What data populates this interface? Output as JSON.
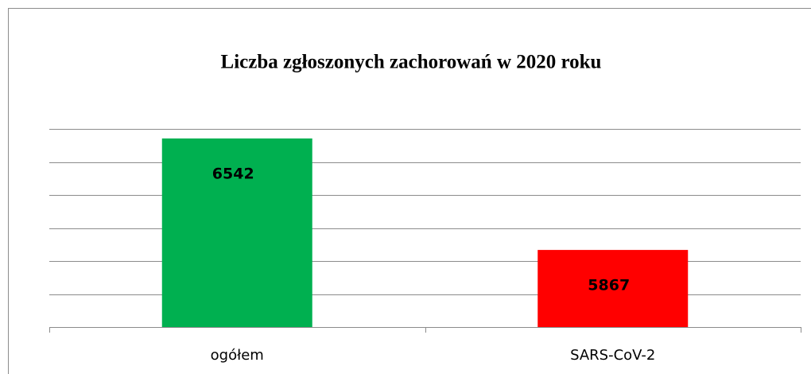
{
  "chart_data": {
    "type": "bar",
    "title": "Liczba zgłoszonych zachorowań w 2020 roku",
    "categories": [
      "ogółem",
      "SARS-CoV-2"
    ],
    "values": [
      6542,
      5867
    ],
    "colors": [
      "#00b050",
      "#ff0000"
    ],
    "ylim": [
      5400,
      6600
    ],
    "yticks": [
      5400,
      5600,
      5800,
      6000,
      6200,
      6400,
      6600
    ],
    "grid": true
  }
}
